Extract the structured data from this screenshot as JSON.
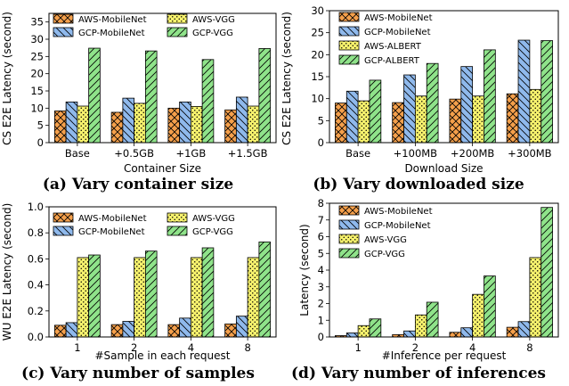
{
  "patterns": {
    "crosshatch": {
      "color": "#f5a04b"
    },
    "backslash": {
      "color": "#8fb9ec"
    },
    "dots": {
      "color": "#f7f26d"
    },
    "slash": {
      "color": "#8fe38a"
    }
  },
  "chart_data": [
    {
      "type": "bar",
      "id": "a",
      "caption": "(a) Vary container size",
      "categories": [
        "Base",
        "+0.5GB",
        "+1GB",
        "+1.5GB"
      ],
      "series": [
        {
          "name": "AWS-MobileNet",
          "pattern": "crosshatch",
          "values": [
            9.2,
            8.8,
            10.0,
            9.5
          ]
        },
        {
          "name": "GCP-MobileNet",
          "pattern": "backslash",
          "values": [
            11.8,
            12.9,
            11.8,
            13.2
          ]
        },
        {
          "name": "AWS-VGG",
          "pattern": "dots",
          "values": [
            10.6,
            11.4,
            10.5,
            10.6
          ]
        },
        {
          "name": "GCP-VGG",
          "pattern": "slash",
          "values": [
            27.4,
            26.6,
            24.1,
            27.3
          ]
        }
      ],
      "xlabel": "Container Size",
      "ylabel": "CS E2E Latency (second)",
      "ylim": [
        0,
        37.5
      ],
      "yticks": [
        0,
        5,
        10,
        15,
        20,
        25,
        30,
        35
      ],
      "legend": {
        "columns": 2,
        "position": "top"
      }
    },
    {
      "type": "bar",
      "id": "b",
      "caption": "(b) Vary downloaded size",
      "categories": [
        "Base",
        "+100MB",
        "+200MB",
        "+300MB"
      ],
      "series": [
        {
          "name": "AWS-MobileNet",
          "pattern": "crosshatch",
          "values": [
            9.0,
            9.1,
            9.9,
            11.1
          ]
        },
        {
          "name": "GCP-MobileNet",
          "pattern": "backslash",
          "values": [
            11.7,
            15.4,
            17.3,
            23.3
          ]
        },
        {
          "name": "AWS-ALBERT",
          "pattern": "dots",
          "values": [
            9.5,
            10.6,
            10.6,
            12.1
          ]
        },
        {
          "name": "GCP-ALBERT",
          "pattern": "slash",
          "values": [
            14.2,
            18.0,
            21.1,
            23.2
          ]
        }
      ],
      "xlabel": "Download Size",
      "ylabel": "CS E2E Latency (second)",
      "ylim": [
        0,
        30
      ],
      "yticks": [
        0,
        5,
        10,
        15,
        20,
        25,
        30
      ],
      "legend": {
        "columns": 1,
        "position": "top-left"
      }
    },
    {
      "type": "bar",
      "id": "c",
      "caption": "(c) Vary number of samples",
      "categories": [
        "1",
        "2",
        "4",
        "8"
      ],
      "series": [
        {
          "name": "AWS-MobileNet",
          "pattern": "crosshatch",
          "values": [
            0.09,
            0.095,
            0.095,
            0.1
          ]
        },
        {
          "name": "GCP-MobileNet",
          "pattern": "backslash",
          "values": [
            0.11,
            0.12,
            0.145,
            0.16
          ]
        },
        {
          "name": "AWS-VGG",
          "pattern": "dots",
          "values": [
            0.61,
            0.61,
            0.61,
            0.61
          ]
        },
        {
          "name": "GCP-VGG",
          "pattern": "slash",
          "values": [
            0.63,
            0.66,
            0.685,
            0.73
          ]
        }
      ],
      "xlabel": "#Sample in each request",
      "ylabel": "WU E2E Latency (second)",
      "ylim": [
        0,
        1.0
      ],
      "yticks": [
        "0.0",
        "0.2",
        "0.4",
        "0.6",
        "0.8",
        "1.0"
      ],
      "legend": {
        "columns": 2,
        "position": "top"
      }
    },
    {
      "type": "bar",
      "id": "d",
      "caption": "(d) Vary number of inferences",
      "categories": [
        "1",
        "2",
        "4",
        "8"
      ],
      "series": [
        {
          "name": "AWS-MobileNet",
          "pattern": "crosshatch",
          "values": [
            0.08,
            0.14,
            0.28,
            0.58
          ]
        },
        {
          "name": "GCP-MobileNet",
          "pattern": "backslash",
          "values": [
            0.24,
            0.36,
            0.55,
            0.92
          ]
        },
        {
          "name": "AWS-VGG",
          "pattern": "dots",
          "values": [
            0.68,
            1.32,
            2.55,
            4.75
          ]
        },
        {
          "name": "GCP-VGG",
          "pattern": "slash",
          "values": [
            1.08,
            2.08,
            3.65,
            7.75
          ]
        }
      ],
      "xlabel": "#Inference per request",
      "ylabel": "Latency (second)",
      "ylim": [
        0,
        8
      ],
      "yticks": [
        0,
        1,
        2,
        3,
        4,
        5,
        6,
        7,
        8
      ],
      "legend": {
        "columns": 1,
        "position": "top-left"
      }
    }
  ]
}
